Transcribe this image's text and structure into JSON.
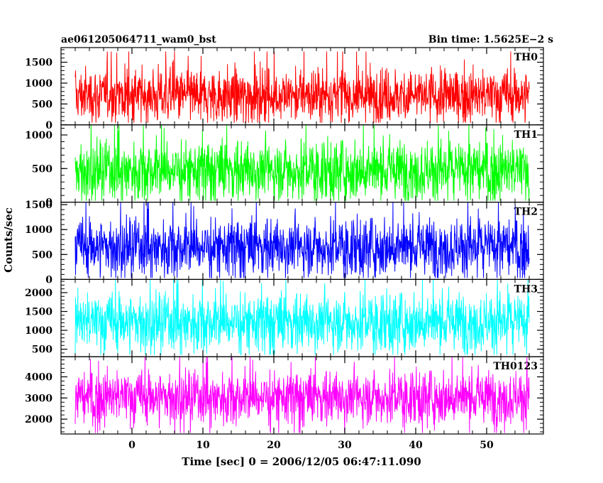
{
  "chart_data": {
    "type": "line",
    "title": "ae061205064711_wam0_bst",
    "bin_time_label": "Bin time: 1.5625E−2 s",
    "xlabel": "Time [sec] 0 = 2006/12/05 06:47:11.090",
    "ylabel": "Counts/sec",
    "xlim": [
      -10,
      58
    ],
    "data_range_x": [
      -8,
      56
    ],
    "x_ticks": [
      0,
      10,
      20,
      30,
      40,
      50
    ],
    "x_tick_labels": [
      "0",
      "10",
      "20",
      "30",
      "40",
      "50"
    ],
    "grid": false,
    "series": [
      {
        "name": "TH0",
        "color": "#ff0000",
        "ylim": [
          0,
          1850
        ],
        "y_ticks": [
          0,
          500,
          1000,
          1500
        ],
        "y_tick_labels": [
          "0",
          "500",
          "1000",
          "1500"
        ],
        "mean": 700,
        "spread": 330,
        "min": 50,
        "max": 1850
      },
      {
        "name": "TH1",
        "color": "#00ff00",
        "ylim": [
          0,
          1150
        ],
        "y_ticks": [
          0,
          500,
          1000
        ],
        "y_tick_labels": [
          "0",
          "500",
          "1000"
        ],
        "mean": 480,
        "spread": 230,
        "min": 20,
        "max": 1150
      },
      {
        "name": "TH2",
        "color": "#0000ff",
        "ylim": [
          0,
          1550
        ],
        "y_ticks": [
          0,
          500,
          1000,
          1500
        ],
        "y_tick_labels": [
          "0",
          "500",
          "1000",
          "1500"
        ],
        "mean": 660,
        "spread": 300,
        "min": 30,
        "max": 1550
      },
      {
        "name": "TH3",
        "color": "#00ffff",
        "ylim": [
          300,
          2350
        ],
        "y_ticks": [
          500,
          1000,
          1500,
          2000
        ],
        "y_tick_labels": [
          "500",
          "1000",
          "1500",
          "2000"
        ],
        "mean": 1230,
        "spread": 400,
        "min": 350,
        "max": 2350
      },
      {
        "name": "TH0123",
        "color": "#ff00ff",
        "ylim": [
          1300,
          4950
        ],
        "y_ticks": [
          2000,
          3000,
          4000
        ],
        "y_tick_labels": [
          "2000",
          "3000",
          "4000"
        ],
        "mean": 3050,
        "spread": 650,
        "min": 1350,
        "max": 4950
      }
    ]
  }
}
